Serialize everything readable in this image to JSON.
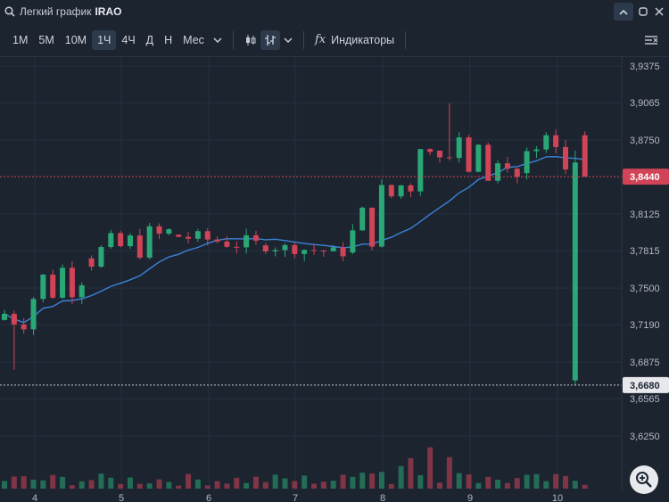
{
  "topbar": {
    "title": "Легкий график",
    "ticker": "IRAO",
    "collapse_glyph": "^",
    "icons": [
      "search-icon",
      "chevron-up-icon",
      "restore-window-icon",
      "close-icon"
    ]
  },
  "toolbar": {
    "timeframes": [
      "1M",
      "5M",
      "10M",
      "1Ч",
      "4Ч",
      "Д",
      "Н",
      "Мес"
    ],
    "active_timeframe": "1Ч",
    "indicators_label": "Индикаторы",
    "fx_glyph": "fx"
  },
  "colors": {
    "background": "#1c2430",
    "up": "#2aa776",
    "down": "#d14457",
    "ma": "#3b82d6",
    "current_price_badge": "#d14457",
    "low_price_badge": "#e6e8ec"
  },
  "chart_data": {
    "type": "candlestick",
    "symbol": "IRAO",
    "timeframe": "1Ч",
    "y_ticks": [
      "3,9375",
      "3,9065",
      "3,8750",
      "3,8125",
      "3,7815",
      "3,7500",
      "3,7190",
      "3,6875",
      "3,6565",
      "3,6250"
    ],
    "x_ticks": [
      "4",
      "5",
      "6",
      "7",
      "8",
      "9",
      "10"
    ],
    "ylim": [
      3.61,
      3.95
    ],
    "current_price": "3,8440",
    "marked_low_price": "3,6680",
    "grid": true,
    "ma_color": "blue",
    "candles_by_day": [
      {
        "day": "4",
        "start": 3.723,
        "end": 3.775,
        "high": 3.79,
        "low": 3.681
      },
      {
        "day": "5",
        "start": 3.775,
        "end": 3.795,
        "high": 3.821,
        "low": 3.766
      },
      {
        "day": "6",
        "start": 3.795,
        "end": 3.786,
        "high": 3.8,
        "low": 3.771
      },
      {
        "day": "7",
        "start": 3.786,
        "end": 3.78,
        "high": 3.79,
        "low": 3.773
      },
      {
        "day": "8",
        "start": 3.78,
        "end": 3.866,
        "high": 3.879,
        "low": 3.776
      },
      {
        "day": "9",
        "start": 3.866,
        "end": 3.847,
        "high": 3.906,
        "low": 3.832
      },
      {
        "day": "10",
        "start": 3.847,
        "end": 3.844,
        "high": 3.881,
        "low": 3.668
      }
    ]
  }
}
